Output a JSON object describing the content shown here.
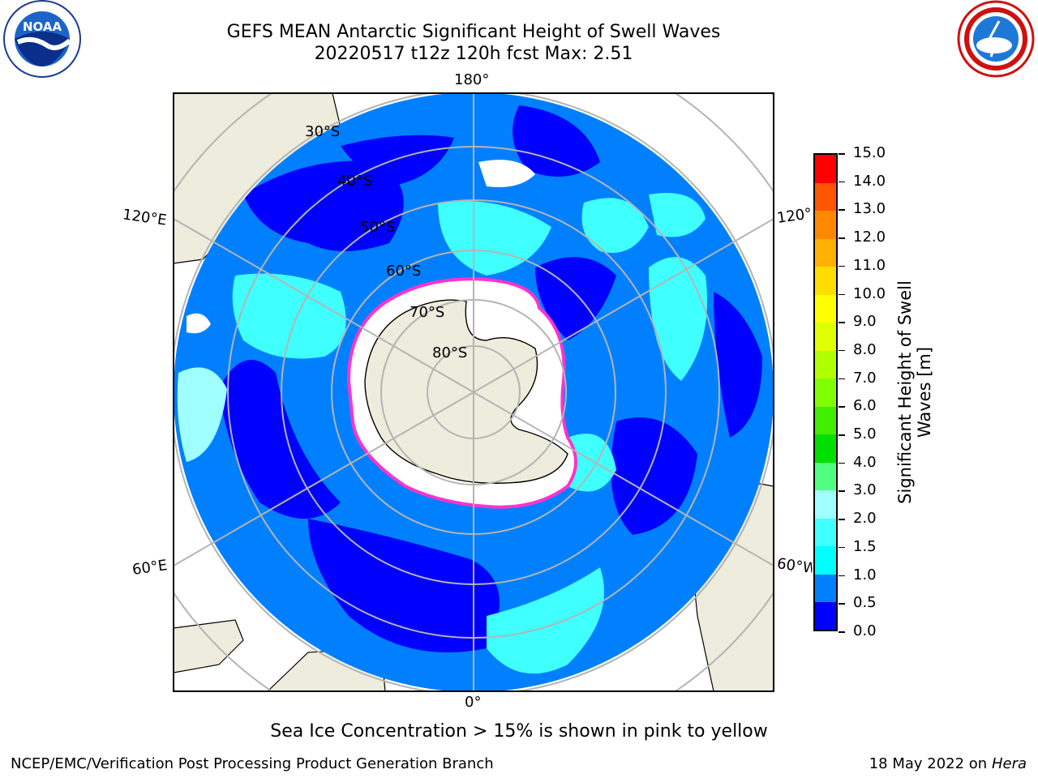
{
  "header": {
    "title_line1": "GEFS MEAN Antarctic Significant Height of Swell Waves",
    "title_line2": "20220517 t12z 120h fcst   Max: 2.51"
  },
  "logos": {
    "left": {
      "icon": "noaa-logo-icon",
      "text": "NOAA"
    },
    "right": {
      "icon": "national-weather-service-logo-icon"
    }
  },
  "map": {
    "projection": "south-polar-stereographic",
    "longitude_labels": {
      "top": "180°",
      "bottom": "0°",
      "upper_left": "120°E",
      "upper_right": "120°W",
      "lower_left": "60°E",
      "lower_right": "60°W"
    },
    "latitude_labels": [
      "30°S",
      "40°S",
      "50°S",
      "60°S",
      "70°S",
      "80°S"
    ],
    "colors": {
      "land": "#eeecdc",
      "sea_ice": "#ffffff",
      "ice_edge": "#ff33cc",
      "grid": "#b4b4b4"
    }
  },
  "colorbar": {
    "label": "Significant Height of Swell Waves [m]",
    "ticks": [
      "0.0",
      "0.5",
      "1.0",
      "1.5",
      "2.0",
      "3.0",
      "4.0",
      "5.0",
      "6.0",
      "7.0",
      "8.0",
      "9.0",
      "10.0",
      "11.0",
      "12.0",
      "13.0",
      "14.0",
      "15.0"
    ],
    "colors": [
      "#0000ff",
      "#0080ff",
      "#00ffff",
      "#40ffff",
      "#a0ffff",
      "#50ff80",
      "#00e000",
      "#40ee00",
      "#80ff00",
      "#b0ff00",
      "#e0ff00",
      "#ffff00",
      "#ffdd00",
      "#ffb000",
      "#ff8800",
      "#ff5500",
      "#ff0000"
    ]
  },
  "note": "Sea Ice Concentration > 15% is shown in pink to yellow",
  "footer": {
    "left": "NCEP/EMC/Verification Post Processing Product Generation Branch",
    "date": "18 May 2022 on",
    "host": "Hera"
  }
}
